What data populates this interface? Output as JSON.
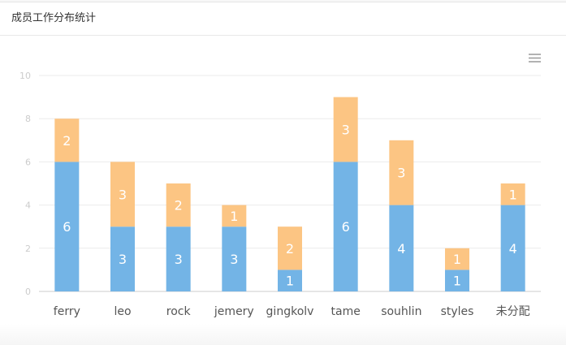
{
  "panel": {
    "title": "成员工作分布统计"
  },
  "toolbar": {
    "menu_icon": "hamburger-menu-icon"
  },
  "colors": {
    "bottom": "#73b4e6",
    "top": "#fcc583",
    "grid": "#ebebeb",
    "axis": "#cccccc",
    "tick": "#cccccc",
    "label": "#555555"
  },
  "chart_data": {
    "type": "bar",
    "stacked": true,
    "categories": [
      "ferry",
      "leo",
      "rock",
      "jemery",
      "gingkolv",
      "tame",
      "souhlin",
      "styles",
      "未分配"
    ],
    "series": [
      {
        "values": [
          6,
          3,
          3,
          3,
          1,
          6,
          4,
          1,
          4
        ]
      },
      {
        "values": [
          2,
          3,
          2,
          1,
          2,
          3,
          3,
          1,
          1
        ]
      }
    ],
    "ylim": [
      0,
      10
    ],
    "yticks": [
      0,
      2,
      4,
      6,
      8,
      10
    ],
    "grid": true
  }
}
